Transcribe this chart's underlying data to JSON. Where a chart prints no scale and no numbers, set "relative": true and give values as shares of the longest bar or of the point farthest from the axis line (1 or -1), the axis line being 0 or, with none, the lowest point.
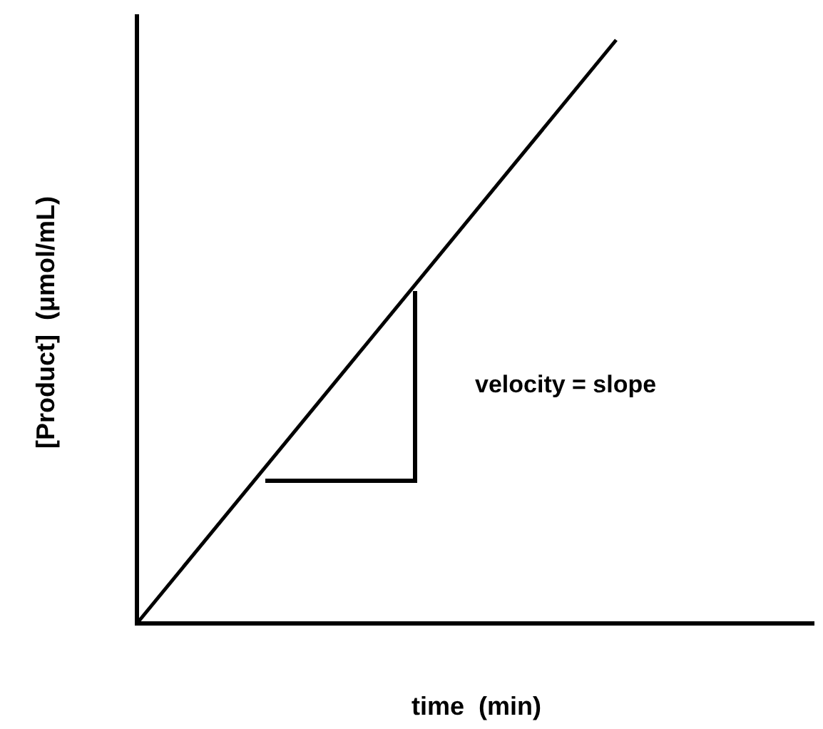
{
  "chart_data": {
    "type": "line",
    "relative": true,
    "xlabel": "time  (min)",
    "ylabel": "[Product]  (μmol/mL)",
    "categories": [
      null,
      null
    ],
    "series": [
      {
        "color": "#000000",
        "values": [
          0,
          1
        ]
      }
    ],
    "annotations": [
      "velocity = slope"
    ]
  }
}
